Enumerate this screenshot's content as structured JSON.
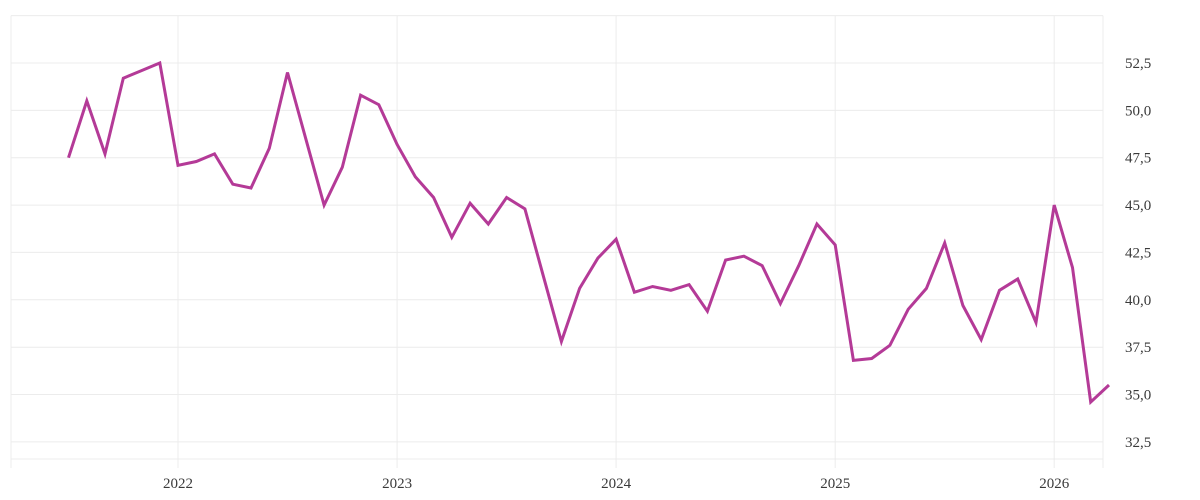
{
  "chart_data": {
    "type": "line",
    "title": "",
    "xlabel": "",
    "ylabel": "",
    "legend": null,
    "grid": true,
    "decimal_separator": ",",
    "line_color": "#b43a97",
    "grid_color": "#ececec",
    "label_color": "#3a3a3a",
    "background_color": "#ffffff",
    "ylim": [
      31.6,
      55.0
    ],
    "y_gridline_values": [
      55.0,
      52.5,
      50.0,
      47.5,
      45.0,
      42.5,
      40.0,
      37.5,
      35.0,
      32.5
    ],
    "y_ticks": [
      {
        "value": 52.5,
        "label": "52,5"
      },
      {
        "value": 50.0,
        "label": "50,0"
      },
      {
        "value": 47.5,
        "label": "47,5"
      },
      {
        "value": 45.0,
        "label": "45,0"
      },
      {
        "value": 42.5,
        "label": "42,5"
      },
      {
        "value": 40.0,
        "label": "40,0"
      },
      {
        "value": 37.5,
        "label": "37,5"
      },
      {
        "value": 35.0,
        "label": "35,0"
      },
      {
        "value": 32.5,
        "label": "32,5"
      }
    ],
    "x_tick_labels": [
      "2022",
      "2023",
      "2024",
      "2025",
      "2026"
    ],
    "x": [
      "2021-07",
      "2021-08",
      "2021-09",
      "2021-10",
      "2021-11",
      "2021-12",
      "2022-01",
      "2022-02",
      "2022-03",
      "2022-04",
      "2022-05",
      "2022-06",
      "2022-07",
      "2022-08",
      "2022-09",
      "2022-10",
      "2022-11",
      "2022-12",
      "2023-01",
      "2023-02",
      "2023-03",
      "2023-04",
      "2023-05",
      "2023-06",
      "2023-07",
      "2023-08",
      "2023-09",
      "2023-10",
      "2023-11",
      "2023-12",
      "2024-01",
      "2024-02",
      "2024-03",
      "2024-04",
      "2024-05",
      "2024-06",
      "2024-07",
      "2024-08",
      "2024-09",
      "2024-10",
      "2024-11",
      "2024-12",
      "2025-01",
      "2025-02",
      "2025-03",
      "2025-04",
      "2025-05",
      "2025-06",
      "2025-07",
      "2025-08",
      "2025-09",
      "2025-10",
      "2025-11",
      "2025-12",
      "2026-01",
      "2026-02",
      "2026-03",
      "2026-04"
    ],
    "values": [
      47.5,
      50.5,
      47.7,
      51.7,
      52.1,
      52.5,
      47.1,
      47.3,
      47.7,
      46.1,
      45.9,
      48.0,
      52.0,
      48.5,
      45.0,
      47.0,
      50.8,
      50.3,
      48.2,
      46.5,
      45.4,
      43.3,
      45.1,
      44.0,
      45.4,
      44.8,
      41.3,
      37.8,
      40.6,
      42.2,
      43.2,
      40.4,
      40.7,
      40.5,
      40.8,
      39.4,
      42.1,
      42.3,
      41.8,
      39.8,
      41.8,
      44.0,
      42.9,
      36.8,
      36.9,
      37.6,
      39.5,
      40.6,
      43.0,
      39.7,
      37.9,
      40.5,
      41.1,
      38.8,
      45.0,
      41.7,
      34.6,
      35.5
    ]
  }
}
